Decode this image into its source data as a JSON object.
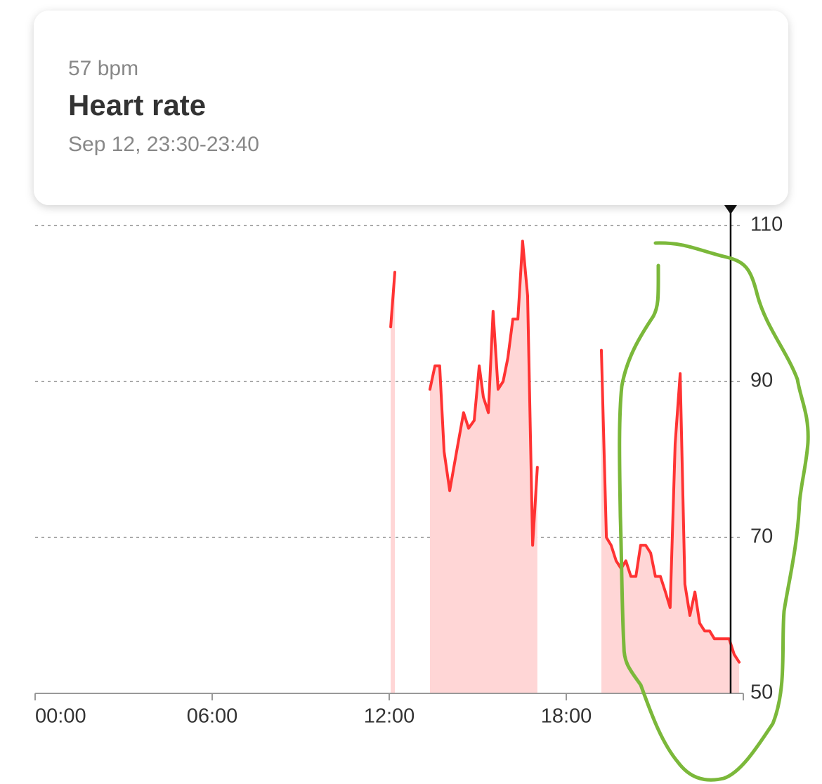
{
  "chart_data": {
    "type": "line",
    "tooltip": {
      "value": "57 bpm",
      "title": "Heart rate",
      "time": "Sep 12, 23:30-23:40"
    },
    "cursor": 23.57,
    "xlim": [
      0,
      24
    ],
    "xticks": [
      {
        "value": 0,
        "label": "00:00"
      },
      {
        "value": 6,
        "label": "06:00"
      },
      {
        "value": 12,
        "label": "12:00"
      },
      {
        "value": 18,
        "label": "18:00"
      },
      {
        "value": 24,
        "label": ""
      }
    ],
    "ylim": [
      50,
      110
    ],
    "yticks": [
      50,
      70,
      90,
      110
    ],
    "grid": true,
    "series": [
      {
        "name": "Heart rate",
        "color": "#ff3333",
        "fill": "#ffd6d6",
        "x": [
          12.05,
          12.19,
          null,
          13.38,
          13.55,
          13.71,
          13.86,
          14.05,
          14.33,
          14.52,
          14.69,
          14.88,
          15.05,
          15.19,
          15.36,
          15.52,
          15.69,
          15.86,
          16.02,
          16.19,
          16.36,
          16.52,
          16.69,
          16.86,
          17.02,
          null,
          19.19,
          19.36,
          19.52,
          19.69,
          19.86,
          20.02,
          20.19,
          20.36,
          20.52,
          20.69,
          20.86,
          21.02,
          21.19,
          21.36,
          21.52,
          21.69,
          21.86,
          22.02,
          22.19,
          22.36,
          22.52,
          22.69,
          22.86,
          23.02,
          23.19,
          23.36,
          23.52,
          23.69,
          23.86
        ],
        "values": [
          97,
          104,
          null,
          89,
          92,
          92,
          81,
          76,
          82,
          86,
          84,
          85,
          92,
          88,
          86,
          99,
          89,
          90,
          93,
          98,
          98,
          108,
          101,
          69,
          79,
          null,
          94,
          70,
          69,
          67,
          66,
          67,
          65,
          65,
          69,
          69,
          68,
          65,
          65,
          63,
          61,
          82,
          91,
          64,
          60,
          63,
          59,
          58,
          58,
          57,
          57,
          57,
          57,
          55,
          54
        ]
      }
    ]
  }
}
